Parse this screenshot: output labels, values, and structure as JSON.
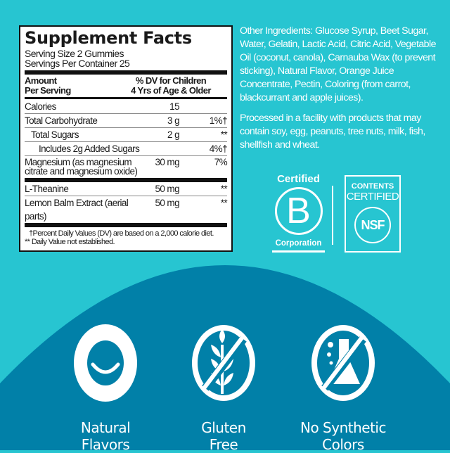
{
  "colors": {
    "background": "#27c5d1",
    "band": "#0180a8",
    "text_white": "#ffffff"
  },
  "facts": {
    "title": "Supplement Facts",
    "serving_size": "Serving Size 2 Gummies",
    "servings_per_container": "Servings Per Container 25",
    "header_left_1": "Amount",
    "header_left_2": "Per Serving",
    "header_right_1": "% DV for Children",
    "header_right_2": "4 Yrs of Age & Older",
    "rows": [
      {
        "name": "Calories",
        "amount": "15",
        "dv": ""
      },
      {
        "name": "Total Carbohydrate",
        "amount": "3 g",
        "dv": "1%†"
      },
      {
        "name": "Total Sugars",
        "amount": "2 g",
        "dv": "**"
      },
      {
        "name": "Includes 2g Added Sugars",
        "amount": "",
        "dv": "4%†"
      },
      {
        "name_1": "Magnesium (as magnesium",
        "name_2": "citrate and magnesium oxide)",
        "amount": "30 mg",
        "dv": "7%"
      },
      {
        "name": "L-Theanine",
        "amount": "50 mg",
        "dv": "**"
      },
      {
        "name": "Lemon Balm Extract (aerial parts)",
        "amount": "50 mg",
        "dv": "**"
      }
    ],
    "footnote_1": "†Percent Daily Values (DV) are based on a 2,000 calorie diet.",
    "footnote_2": "** Daily Value not established."
  },
  "other_ingredients": "Other Ingredients: Glucose Syrup, Beet Sugar, Water, Gelatin, Lactic Acid, Citric Acid, Vegetable Oil (coconut, canola), Carnauba Wax (to prevent sticking), Natural Flavor, Orange Juice Concentrate, Pectin, Coloring (from carrot, blackcurrant and apple juices).",
  "allergen": "Processed in a facility with products that may contain soy, egg, peanuts, tree nuts, milk, fish, shellfish and wheat.",
  "certifications": {
    "bcorp": {
      "top": "Certified",
      "letter": "B",
      "bottom": "Corporation"
    },
    "nsf": {
      "line1": "CONTENTS",
      "line2": "CERTIFIED",
      "mark": "NSF"
    }
  },
  "features": [
    {
      "label_1": "Natural",
      "label_2": "Flavors",
      "icon": "smile-icon"
    },
    {
      "label_1": "Gluten",
      "label_2": "Free",
      "icon": "no-wheat-icon"
    },
    {
      "label_1": "No Synthetic",
      "label_2": "Colors",
      "icon": "no-flask-icon"
    }
  ]
}
